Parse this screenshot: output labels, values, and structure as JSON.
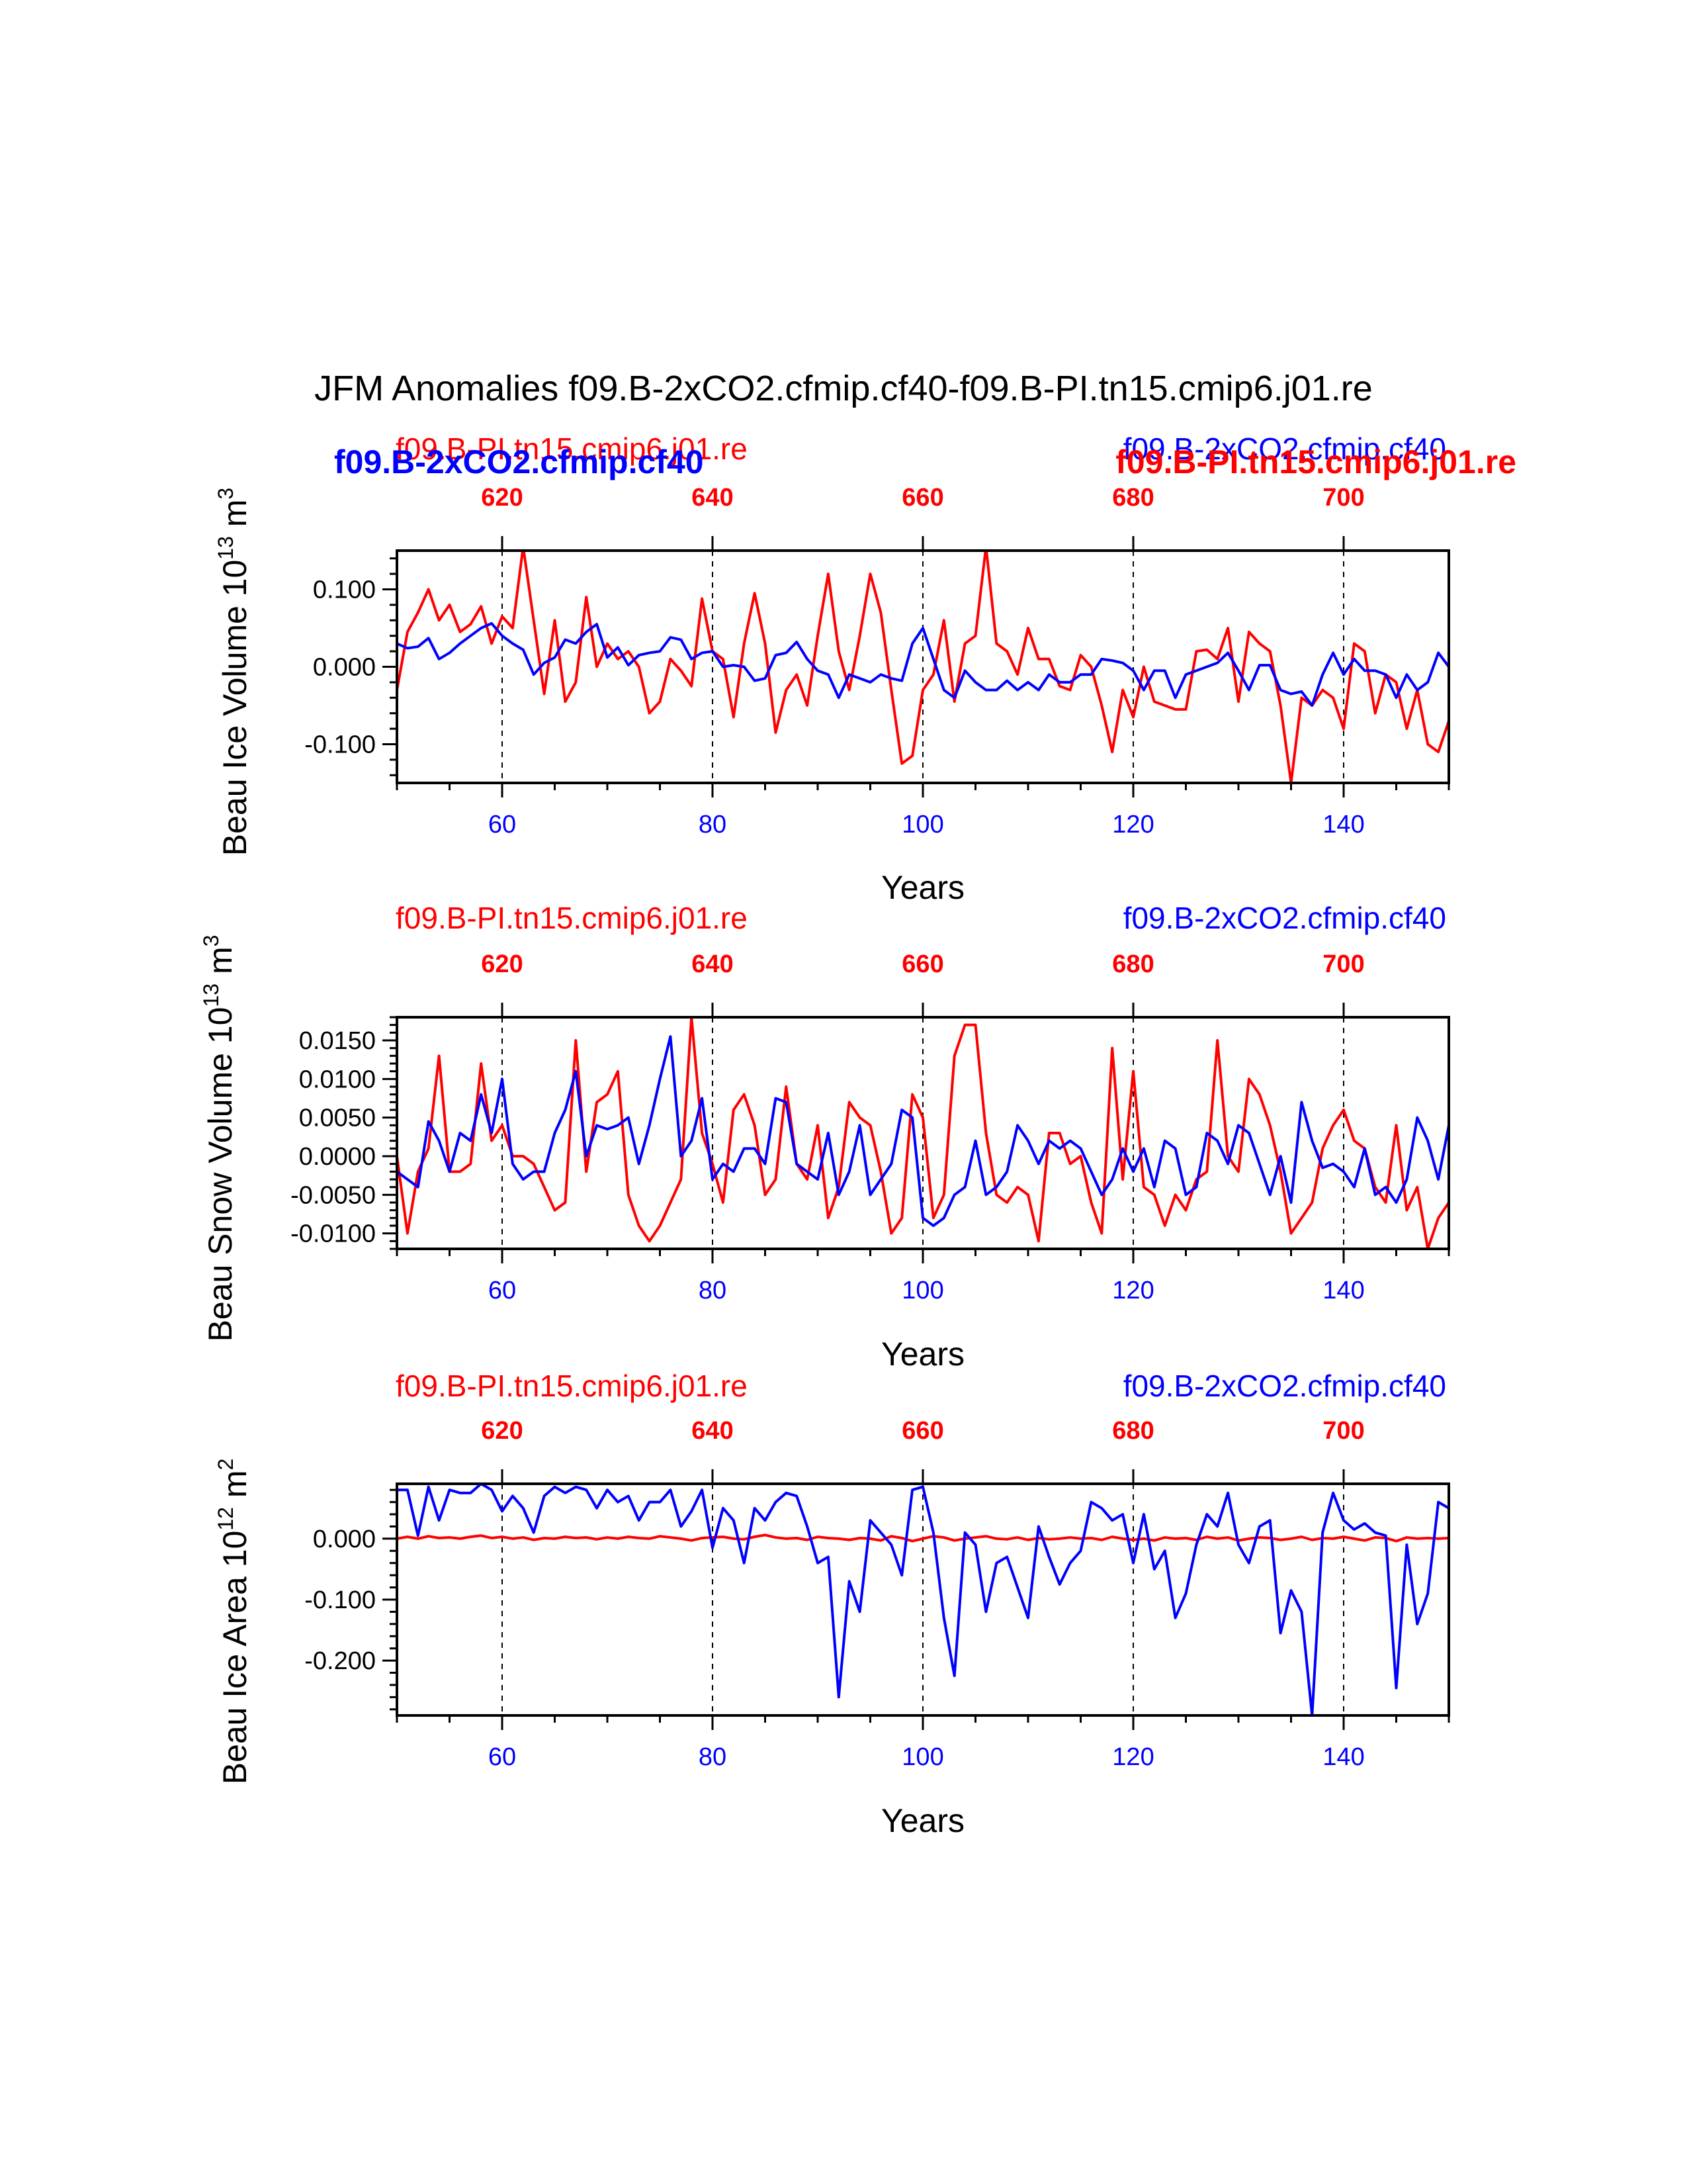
{
  "figure": {
    "title": "JFM Anomalies f09.B-2xCO2.cfmip.cf40-f09.B-PI.tn15.cmip6.j01.re"
  },
  "colors": {
    "red": "#ff0000",
    "blue": "#0000ff",
    "axis": "#000000"
  },
  "chart_data": [
    {
      "type": "line",
      "name": "ice-volume",
      "left_title": "f09.B-PI.tn15.cmip6.j01.re",
      "right_title": "f09.B-2xCO2.cfmip.cf40",
      "left_overlay": "f09.B-2xCO2.cfmip.cf40",
      "right_overlay": "f09.B-PI.tn15.cmip6.j01.re",
      "ylabel": "Beau Ice Volume 10",
      "ylabel_exp": "13",
      "ylabel_unit": " m",
      "ylabel_unit_exp": "3",
      "xlabel": "Years",
      "xlim": [
        50,
        150
      ],
      "ylim": [
        -0.15,
        0.15
      ],
      "x_ticks": [
        60,
        80,
        100,
        120,
        140
      ],
      "x_tick_labels": [
        "60",
        "80",
        "100",
        "120",
        "140"
      ],
      "top_ticks": [
        610,
        630,
        650,
        670,
        690
      ],
      "top_tick_labels": [
        "620",
        "640",
        "660",
        "680",
        "700"
      ],
      "y_ticks": [
        -0.1,
        0.0,
        0.1
      ],
      "y_tick_labels": [
        "-0.100",
        "0.000",
        "0.100"
      ],
      "vlines": [
        60,
        80,
        100,
        120,
        140
      ],
      "series": [
        {
          "name": "f09.B-2xCO2.cfmip.cf40",
          "color": "blue",
          "values": [
            0.03,
            0.024,
            0.026,
            0.037,
            0.01,
            0.018,
            0.03,
            0.04,
            0.05,
            0.056,
            0.04,
            0.03,
            0.022,
            -0.01,
            0.005,
            0.012,
            0.035,
            0.03,
            0.045,
            0.055,
            0.012,
            0.025,
            0.002,
            0.015,
            0.018,
            0.02,
            0.038,
            0.035,
            0.01,
            0.018,
            0.02,
            0.0,
            0.002,
            0.0,
            -0.018,
            -0.015,
            0.015,
            0.018,
            0.032,
            0.01,
            -0.005,
            -0.01,
            -0.04,
            -0.01,
            -0.015,
            -0.02,
            -0.01,
            -0.015,
            -0.018,
            0.03,
            0.05,
            0.01,
            -0.03,
            -0.04,
            -0.005,
            -0.02,
            -0.03,
            -0.03,
            -0.018,
            -0.03,
            -0.02,
            -0.03,
            -0.01,
            -0.02,
            -0.02,
            -0.01,
            -0.01,
            0.01,
            0.008,
            0.005,
            -0.005,
            -0.03,
            -0.005,
            -0.005,
            -0.04,
            -0.01,
            -0.005,
            0.0,
            0.005,
            0.018,
            -0.005,
            -0.03,
            0.002,
            0.002,
            -0.03,
            -0.035,
            -0.032,
            -0.05,
            -0.01,
            0.018,
            -0.01,
            0.01,
            -0.005,
            -0.005,
            -0.01,
            -0.04,
            -0.01,
            -0.03,
            -0.02,
            0.018,
            0.0
          ]
        },
        {
          "name": "f09.B-PI.tn15.cmip6.j01.re",
          "color": "red",
          "values": [
            -0.03,
            0.045,
            0.07,
            0.1,
            0.06,
            0.08,
            0.045,
            0.055,
            0.078,
            0.03,
            0.065,
            0.05,
            0.155,
            0.06,
            -0.035,
            0.06,
            -0.045,
            -0.02,
            0.09,
            0.0,
            0.03,
            0.01,
            0.02,
            0.0,
            -0.06,
            -0.045,
            0.01,
            -0.005,
            -0.025,
            0.088,
            0.02,
            0.01,
            -0.065,
            0.03,
            0.095,
            0.03,
            -0.085,
            -0.03,
            -0.01,
            -0.05,
            0.04,
            0.12,
            0.02,
            -0.03,
            0.04,
            0.12,
            0.07,
            -0.03,
            -0.125,
            -0.115,
            -0.03,
            -0.01,
            0.06,
            -0.045,
            0.03,
            0.04,
            0.155,
            0.03,
            0.02,
            -0.01,
            0.05,
            0.01,
            0.01,
            -0.025,
            -0.03,
            0.015,
            0.0,
            -0.05,
            -0.11,
            -0.03,
            -0.065,
            0.0,
            -0.045,
            -0.05,
            -0.055,
            -0.055,
            0.02,
            0.022,
            0.01,
            0.05,
            -0.045,
            0.045,
            0.03,
            0.02,
            -0.05,
            -0.15,
            -0.04,
            -0.05,
            -0.03,
            -0.04,
            -0.08,
            0.03,
            0.02,
            -0.06,
            -0.01,
            -0.02,
            -0.08,
            -0.03,
            -0.1,
            -0.11,
            -0.07
          ]
        }
      ]
    },
    {
      "type": "line",
      "name": "snow-volume",
      "left_title": "f09.B-PI.tn15.cmip6.j01.re",
      "right_title": "f09.B-2xCO2.cfmip.cf40",
      "ylabel": "Beau Snow Volume 10",
      "ylabel_exp": "13",
      "ylabel_unit": " m",
      "ylabel_unit_exp": "3",
      "xlabel": "Years",
      "xlim": [
        50,
        150
      ],
      "ylim": [
        -0.012,
        0.018
      ],
      "x_ticks": [
        60,
        80,
        100,
        120,
        140
      ],
      "x_tick_labels": [
        "60",
        "80",
        "100",
        "120",
        "140"
      ],
      "top_ticks": [
        610,
        630,
        650,
        670,
        690
      ],
      "top_tick_labels": [
        "620",
        "640",
        "660",
        "680",
        "700"
      ],
      "y_ticks": [
        -0.01,
        -0.005,
        0.0,
        0.005,
        0.01,
        0.015
      ],
      "y_tick_labels": [
        "-0.0100",
        "-0.0050",
        "0.0000",
        "0.0050",
        "0.0100",
        "0.0150"
      ],
      "vlines": [
        60,
        80,
        100,
        120,
        140
      ],
      "series": [
        {
          "name": "f09.B-2xCO2.cfmip.cf40",
          "color": "blue",
          "values": [
            -0.002,
            -0.003,
            -0.004,
            0.0045,
            0.002,
            -0.002,
            0.003,
            0.002,
            0.008,
            0.003,
            0.01,
            -0.001,
            -0.003,
            -0.002,
            -0.002,
            0.003,
            0.006,
            0.011,
            0.0,
            0.004,
            0.0035,
            0.004,
            0.005,
            -0.001,
            0.004,
            0.01,
            0.0155,
            0.0,
            0.002,
            0.0075,
            -0.003,
            -0.001,
            -0.002,
            0.001,
            0.001,
            -0.001,
            0.0075,
            0.007,
            -0.001,
            -0.002,
            -0.003,
            0.003,
            -0.005,
            -0.002,
            0.004,
            -0.005,
            -0.003,
            -0.001,
            0.006,
            0.005,
            -0.008,
            -0.009,
            -0.008,
            -0.005,
            -0.004,
            0.002,
            -0.005,
            -0.004,
            -0.002,
            0.004,
            0.002,
            -0.001,
            0.002,
            0.001,
            0.002,
            0.001,
            -0.002,
            -0.005,
            -0.003,
            0.001,
            -0.002,
            0.001,
            -0.004,
            0.002,
            0.001,
            -0.005,
            -0.004,
            0.003,
            0.002,
            -0.001,
            0.004,
            0.003,
            -0.001,
            -0.005,
            0.0,
            -0.006,
            0.007,
            0.002,
            -0.0015,
            -0.001,
            -0.002,
            -0.004,
            0.001,
            -0.005,
            -0.004,
            -0.006,
            -0.003,
            0.005,
            0.002,
            -0.003,
            0.004
          ]
        },
        {
          "name": "f09.B-PI.tn15.cmip6.j01.re",
          "color": "red",
          "values": [
            0.0,
            -0.01,
            -0.002,
            0.001,
            0.013,
            -0.002,
            -0.002,
            -0.001,
            0.012,
            0.002,
            0.004,
            0.0,
            0.0,
            -0.001,
            -0.004,
            -0.007,
            -0.006,
            0.015,
            -0.002,
            0.007,
            0.008,
            0.011,
            -0.005,
            -0.009,
            -0.011,
            -0.009,
            -0.006,
            -0.003,
            0.018,
            0.003,
            -0.001,
            -0.006,
            0.006,
            0.008,
            0.004,
            -0.005,
            -0.003,
            0.009,
            -0.001,
            -0.003,
            0.004,
            -0.008,
            -0.004,
            0.007,
            0.005,
            0.004,
            -0.002,
            -0.01,
            -0.008,
            0.008,
            0.005,
            -0.008,
            -0.005,
            0.013,
            0.017,
            0.017,
            0.003,
            -0.005,
            -0.006,
            -0.004,
            -0.005,
            -0.011,
            0.003,
            0.003,
            -0.001,
            0.0,
            -0.006,
            -0.01,
            0.014,
            -0.003,
            0.011,
            -0.004,
            -0.005,
            -0.009,
            -0.005,
            -0.007,
            -0.003,
            -0.002,
            0.015,
            0.0,
            -0.002,
            0.01,
            0.008,
            0.004,
            -0.002,
            -0.01,
            -0.008,
            -0.006,
            0.001,
            0.004,
            0.006,
            0.002,
            0.001,
            -0.004,
            -0.006,
            0.004,
            -0.007,
            -0.004,
            -0.012,
            -0.008,
            -0.006
          ]
        }
      ]
    },
    {
      "type": "line",
      "name": "ice-area",
      "left_title": "f09.B-PI.tn15.cmip6.j01.re",
      "right_title": "f09.B-2xCO2.cfmip.cf40",
      "ylabel": "Beau Ice Area 10",
      "ylabel_exp": "12",
      "ylabel_unit": " m",
      "ylabel_unit_exp": "2",
      "xlabel": "Years",
      "xlim": [
        50,
        150
      ],
      "ylim": [
        -0.29,
        0.09
      ],
      "x_ticks": [
        60,
        80,
        100,
        120,
        140
      ],
      "x_tick_labels": [
        "60",
        "80",
        "100",
        "120",
        "140"
      ],
      "top_ticks": [
        610,
        630,
        650,
        670,
        690
      ],
      "top_tick_labels": [
        "620",
        "640",
        "660",
        "680",
        "700"
      ],
      "y_ticks": [
        -0.2,
        -0.1,
        0.0
      ],
      "y_tick_labels": [
        "-0.200",
        "-0.100",
        "0.000"
      ],
      "vlines": [
        60,
        80,
        100,
        120,
        140
      ],
      "series": [
        {
          "name": "f09.B-2xCO2.cfmip.cf40",
          "color": "blue",
          "values": [
            0.08,
            0.08,
            0.005,
            0.085,
            0.03,
            0.08,
            0.075,
            0.075,
            0.09,
            0.08,
            0.045,
            0.07,
            0.05,
            0.01,
            0.07,
            0.085,
            0.075,
            0.085,
            0.08,
            0.05,
            0.08,
            0.06,
            0.07,
            0.03,
            0.06,
            0.06,
            0.08,
            0.02,
            0.045,
            0.08,
            -0.015,
            0.05,
            0.03,
            -0.04,
            0.05,
            0.03,
            0.06,
            0.075,
            0.07,
            0.02,
            -0.04,
            -0.03,
            -0.26,
            -0.07,
            -0.12,
            0.03,
            0.01,
            -0.01,
            -0.06,
            0.08,
            0.085,
            0.01,
            -0.13,
            -0.225,
            0.01,
            -0.01,
            -0.12,
            -0.04,
            -0.03,
            -0.08,
            -0.13,
            0.02,
            -0.03,
            -0.075,
            -0.04,
            -0.02,
            0.06,
            0.05,
            0.03,
            0.04,
            -0.04,
            0.04,
            -0.05,
            -0.02,
            -0.13,
            -0.09,
            -0.01,
            0.04,
            0.02,
            0.075,
            -0.01,
            -0.04,
            0.02,
            0.03,
            -0.155,
            -0.085,
            -0.12,
            -0.29,
            0.01,
            0.075,
            0.03,
            0.015,
            0.025,
            0.01,
            0.005,
            -0.245,
            -0.01,
            -0.14,
            -0.09,
            0.06,
            0.05
          ]
        },
        {
          "name": "f09.B-PI.tn15.cmip6.j01.re",
          "color": "red",
          "values": [
            0.0,
            0.003,
            0.0,
            0.004,
            0.001,
            0.002,
            0.0,
            0.003,
            0.005,
            0.001,
            0.003,
            0.0,
            0.002,
            -0.002,
            0.001,
            0.0,
            0.003,
            0.001,
            0.002,
            -0.001,
            0.002,
            0.0,
            0.003,
            0.001,
            0.0,
            0.004,
            0.002,
            0.0,
            -0.003,
            0.001,
            0.002,
            0.003,
            0.0,
            -0.001,
            0.003,
            0.006,
            0.002,
            0.0,
            0.001,
            -0.002,
            0.003,
            0.001,
            0.0,
            -0.002,
            0.001,
            0.0,
            -0.003,
            0.004,
            0.001,
            -0.004,
            0.0,
            0.004,
            0.002,
            -0.003,
            0.0,
            0.002,
            0.004,
            0.0,
            -0.001,
            0.002,
            -0.002,
            0.001,
            -0.001,
            0.0,
            0.002,
            0.0,
            0.001,
            -0.002,
            0.003,
            0.0,
            -0.002,
            0.0,
            -0.003,
            0.002,
            0.0,
            0.001,
            -0.002,
            0.003,
            0.0,
            0.002,
            -0.003,
            0.0,
            0.002,
            0.001,
            -0.002,
            0.0,
            0.003,
            -0.002,
            0.001,
            0.0,
            0.003,
            0.0,
            -0.003,
            0.002,
            0.001,
            -0.004,
            0.002,
            0.0,
            0.001,
            0.0,
            0.001
          ]
        }
      ]
    }
  ]
}
